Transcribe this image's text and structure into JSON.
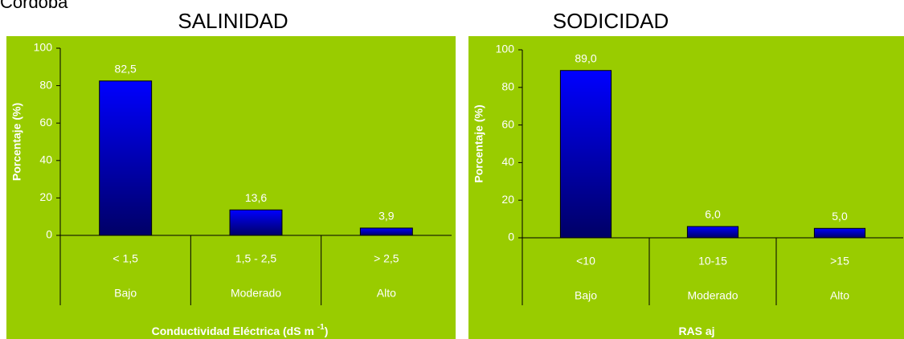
{
  "page_title": "Córdoba",
  "chart_data": [
    {
      "type": "bar",
      "title": "SALINIDAD",
      "y_label": "Porcentaje (%)",
      "x_label": {
        "text": "Conductividad Eléctrica (dS m ",
        "superscript": "-1",
        "suffix": ")"
      },
      "categories": [
        "< 1,5",
        "1,5 - 2,5",
        "> 2,5"
      ],
      "category_levels": [
        "Bajo",
        "Moderado",
        "Alto"
      ],
      "values": [
        82.5,
        13.6,
        3.9
      ],
      "value_labels": [
        "82,5",
        "13,6",
        "3,9"
      ],
      "color": "#0000ff",
      "background": "#99cc00",
      "ylim": [
        0,
        100
      ],
      "yticks": [
        0,
        20,
        40,
        60,
        80,
        100
      ]
    },
    {
      "type": "bar",
      "title": "SODICIDAD",
      "y_label": "Porcentaje (%)",
      "x_label": {
        "text": "RAS aj"
      },
      "categories": [
        "<10",
        "10-15",
        ">15"
      ],
      "category_levels": [
        "Bajo",
        "Moderado",
        "Alto"
      ],
      "values": [
        89.0,
        6.0,
        5.0
      ],
      "value_labels": [
        "89,0",
        "6,0",
        "5,0"
      ],
      "color": "#0000ff",
      "background": "#99cc00",
      "ylim": [
        0,
        100
      ],
      "yticks": [
        0,
        20,
        40,
        60,
        80,
        100
      ]
    }
  ]
}
